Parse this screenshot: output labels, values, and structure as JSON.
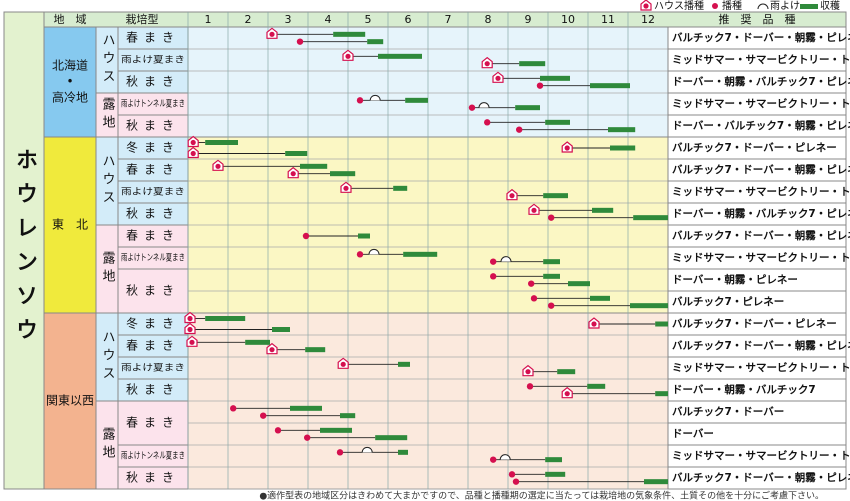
{
  "title": "ホウレンソウ",
  "legend": [
    "ハウス播種",
    "播種",
    "雨よけ",
    "収穫"
  ],
  "header": {
    "region": "地　域",
    "type": "栽培型",
    "months": [
      1,
      2,
      3,
      4,
      5,
      6,
      7,
      8,
      9,
      10,
      11,
      12
    ],
    "varieties": "推　奨　品　種"
  },
  "regions": [
    {
      "name": [
        "北海道",
        "•",
        "高冷地"
      ],
      "color": "#86c9ef",
      "bg": "#e6f4fb",
      "groups": [
        {
          "type": "ハウス",
          "plans": [
            {
              "name": "春まき",
              "rows": [
                {
                  "varieties": "バルチック7・ドーバー・朝霧・ピレネー",
                  "crops": [
                    {
                      "sow": 3.1,
                      "house": true,
                      "harvest": [
                        4.63,
                        5.43
                      ]
                    },
                    {
                      "sow": 3.8,
                      "house": false,
                      "harvest": [
                        5.48,
                        5.88
                      ]
                    }
                  ]
                }
              ]
            },
            {
              "name": "雨よけ夏まき",
              "rows": [
                {
                  "varieties": "ミッドサマー・サマービクトリー・トニック",
                  "crops": [
                    {
                      "sow": 5.0,
                      "house": true,
                      "harvest": [
                        5.75,
                        6.85
                      ]
                    },
                    {
                      "sow": 8.48,
                      "house": true,
                      "harvest": [
                        9.28,
                        9.93
                      ]
                    }
                  ]
                }
              ]
            },
            {
              "name": "秋まき",
              "rows": [
                {
                  "varieties": "ドーバー・朝霧・バルチック7・ピレネー",
                  "crops": [
                    {
                      "sow": 8.75,
                      "house": true,
                      "harvest": [
                        9.8,
                        10.55
                      ]
                    },
                    {
                      "sow": 9.8,
                      "house": false,
                      "harvest": [
                        11.05,
                        12.05
                      ]
                    }
                  ]
                }
              ]
            }
          ]
        },
        {
          "type": "露地",
          "plans": [
            {
              "name": "雨よけトンネル夏まき",
              "rows": [
                {
                  "varieties": "ミッドサマー・サマービクトリー・トニック",
                  "crops": [
                    {
                      "sow": 5.3,
                      "house": false,
                      "rain": 5.68,
                      "harvest": [
                        6.43,
                        7.0
                      ]
                    },
                    {
                      "sow": 8.1,
                      "house": false,
                      "rain": 8.4,
                      "harvest": [
                        9.18,
                        9.8
                      ]
                    }
                  ]
                }
              ]
            },
            {
              "name": "秋まき",
              "rows": [
                {
                  "varieties": "ドーバー・バルチック7・朝霧・ピレネー",
                  "crops": [
                    {
                      "sow": 8.48,
                      "house": false,
                      "harvest": [
                        9.93,
                        10.55
                      ]
                    },
                    {
                      "sow": 9.28,
                      "house": false,
                      "harvest": [
                        11.5,
                        12.18
                      ]
                    }
                  ]
                }
              ]
            }
          ]
        }
      ]
    },
    {
      "name": [
        "東　北"
      ],
      "color": "#f0ea3c",
      "bg": "#fbf7c4",
      "groups": [
        {
          "type": "ハウス",
          "plans": [
            {
              "name": "冬まき",
              "rows": [
                {
                  "varieties": "バルチック7・ドーバー・ピレネー",
                  "crops": [
                    {
                      "sow": 1.13,
                      "house": true,
                      "harvest": [
                        1.43,
                        2.25
                      ]
                    },
                    {
                      "sow": 10.48,
                      "house": true,
                      "harvest": [
                        11.55,
                        12.18
                      ]
                    },
                    {
                      "sow": 1.13,
                      "house": true,
                      "harvest": [
                        3.43,
                        3.98
                      ]
                    }
                  ]
                }
              ]
            },
            {
              "name": "春まき",
              "rows": [
                {
                  "varieties": "バルチック7・ドーバー・朝霧・ピレネー",
                  "crops": [
                    {
                      "sow": 1.75,
                      "house": true,
                      "harvest": [
                        3.8,
                        4.48
                      ]
                    },
                    {
                      "sow": 3.63,
                      "house": true,
                      "harvest": [
                        4.55,
                        5.18
                      ]
                    }
                  ]
                }
              ]
            },
            {
              "name": "雨よけ夏まき",
              "rows": [
                {
                  "varieties": "ミッドサマー・サマービクトリー・トニック",
                  "crops": [
                    {
                      "sow": 4.95,
                      "house": true,
                      "harvest": [
                        6.13,
                        6.48
                      ]
                    },
                    {
                      "sow": 9.1,
                      "house": true,
                      "harvest": [
                        9.88,
                        10.5
                      ]
                    }
                  ]
                }
              ]
            },
            {
              "name": "秋まき",
              "rows": [
                {
                  "varieties": "ドーバー・朝霧・バルチック7・ピレネー",
                  "crops": [
                    {
                      "sow": 9.65,
                      "house": true,
                      "harvest": [
                        11.1,
                        11.63
                      ]
                    },
                    {
                      "sow": 10.08,
                      "house": false,
                      "harvest": [
                        12.13,
                        13.0
                      ]
                    }
                  ]
                }
              ]
            }
          ]
        },
        {
          "type": "露地",
          "plans": [
            {
              "name": "春まき",
              "rows": [
                {
                  "varieties": "バルチック7・ドーバー・朝霧・ピレネー",
                  "crops": [
                    {
                      "sow": 3.95,
                      "house": false,
                      "harvest": [
                        5.25,
                        5.55
                      ]
                    }
                  ]
                }
              ]
            },
            {
              "name": "雨よけトンネル夏まき",
              "rows": [
                {
                  "varieties": "ミッドサマー・サマービクトリー・トニック",
                  "crops": [
                    {
                      "sow": 5.3,
                      "house": false,
                      "rain": 5.65,
                      "harvest": [
                        6.38,
                        7.23
                      ]
                    },
                    {
                      "sow": 8.63,
                      "house": false,
                      "rain": 8.95,
                      "harvest": [
                        9.88,
                        10.3
                      ]
                    }
                  ]
                }
              ]
            },
            {
              "name": "秋まき",
              "rows": [
                {
                  "varieties": "ドーバー・朝霧・ピレネー",
                  "crops": [
                    {
                      "sow": 8.63,
                      "house": false,
                      "harvest": [
                        9.88,
                        10.3
                      ]
                    },
                    {
                      "sow": 9.58,
                      "house": false,
                      "harvest": [
                        10.5,
                        11.05
                      ]
                    }
                  ]
                },
                {
                  "varieties": "バルチック7・ピレネー",
                  "crops": [
                    {
                      "sow": 9.65,
                      "house": false,
                      "harvest": [
                        11.05,
                        11.55
                      ]
                    },
                    {
                      "sow": 10.08,
                      "house": false,
                      "harvest": [
                        12.05,
                        13.0
                      ]
                    }
                  ]
                }
              ]
            }
          ]
        }
      ]
    },
    {
      "name": [
        "関東以西"
      ],
      "color": "#f3b38f",
      "bg": "#fbe9dd",
      "groups": [
        {
          "type": "ハウス",
          "plans": [
            {
              "name": "冬まき",
              "rows": [
                {
                  "varieties": "バルチック7・ドーバー・ピレネー",
                  "crops": [
                    {
                      "sow": 1.05,
                      "house": true,
                      "harvest": [
                        1.43,
                        2.43
                      ]
                    },
                    {
                      "sow": 11.15,
                      "house": true,
                      "harvest": [
                        12.68,
                        13.0
                      ]
                    },
                    {
                      "sow": 1.05,
                      "house": true,
                      "harvest": [
                        3.1,
                        3.55
                      ]
                    }
                  ]
                }
              ]
            },
            {
              "name": "春まき",
              "rows": [
                {
                  "varieties": "バルチック7・ドーバー・朝霧・ピレネー",
                  "crops": [
                    {
                      "sow": 1.1,
                      "house": true,
                      "harvest": [
                        2.43,
                        3.05
                      ]
                    },
                    {
                      "sow": 3.1,
                      "house": true,
                      "harvest": [
                        3.93,
                        4.43
                      ]
                    }
                  ]
                }
              ]
            },
            {
              "name": "雨よけ夏まき",
              "rows": [
                {
                  "varieties": "ミッドサマー・サマービクトリー・トニック",
                  "crops": [
                    {
                      "sow": 4.88,
                      "house": true,
                      "harvest": [
                        6.25,
                        6.55
                      ]
                    },
                    {
                      "sow": 9.5,
                      "house": true,
                      "harvest": [
                        10.23,
                        10.68
                      ]
                    }
                  ]
                }
              ]
            },
            {
              "name": "秋まき",
              "rows": [
                {
                  "varieties": "ドーバー・朝霧・バルチック7",
                  "crops": [
                    {
                      "sow": 9.55,
                      "house": false,
                      "harvest": [
                        10.98,
                        11.43
                      ]
                    },
                    {
                      "sow": 10.48,
                      "house": true,
                      "harvest": [
                        12.68,
                        13.0
                      ]
                    }
                  ]
                }
              ]
            }
          ]
        },
        {
          "type": "露地",
          "plans": [
            {
              "name": "春まき",
              "rows": [
                {
                  "varieties": "バルチック7・ドーバー",
                  "crops": [
                    {
                      "sow": 2.13,
                      "house": false,
                      "harvest": [
                        3.55,
                        4.35
                      ]
                    },
                    {
                      "sow": 2.88,
                      "house": false,
                      "harvest": [
                        4.8,
                        5.18
                      ]
                    }
                  ]
                },
                {
                  "varieties": "ドーバー",
                  "crops": [
                    {
                      "sow": 3.25,
                      "house": false,
                      "harvest": [
                        4.3,
                        5.1
                      ]
                    },
                    {
                      "sow": 3.98,
                      "house": false,
                      "harvest": [
                        5.68,
                        6.48
                      ]
                    }
                  ]
                }
              ]
            },
            {
              "name": "雨よけトンネル夏まき",
              "rows": [
                {
                  "varieties": "ミッドサマー・サマービクトリー・トニック",
                  "crops": [
                    {
                      "sow": 4.8,
                      "house": false,
                      "rain": 5.48,
                      "harvest": [
                        6.25,
                        6.5
                      ]
                    },
                    {
                      "sow": 8.63,
                      "house": false,
                      "rain": 8.93,
                      "harvest": [
                        9.93,
                        10.35
                      ]
                    }
                  ]
                }
              ]
            },
            {
              "name": "秋まき",
              "rows": [
                {
                  "varieties": "バルチック7・ドーバー・朝霧・ピレネー",
                  "crops": [
                    {
                      "sow": 9.1,
                      "house": false,
                      "harvest": [
                        9.93,
                        10.43
                      ]
                    },
                    {
                      "sow": 9.2,
                      "house": false,
                      "harvest": [
                        12.4,
                        13.0
                      ]
                    }
                  ]
                }
              ]
            }
          ]
        }
      ]
    }
  ],
  "footnote": "●適作型表の地域区分はきわめて大まかですので、品種と播種期の選定に当たっては栽培地の気象条件、土質その他を十分にご考慮下さい。"
}
